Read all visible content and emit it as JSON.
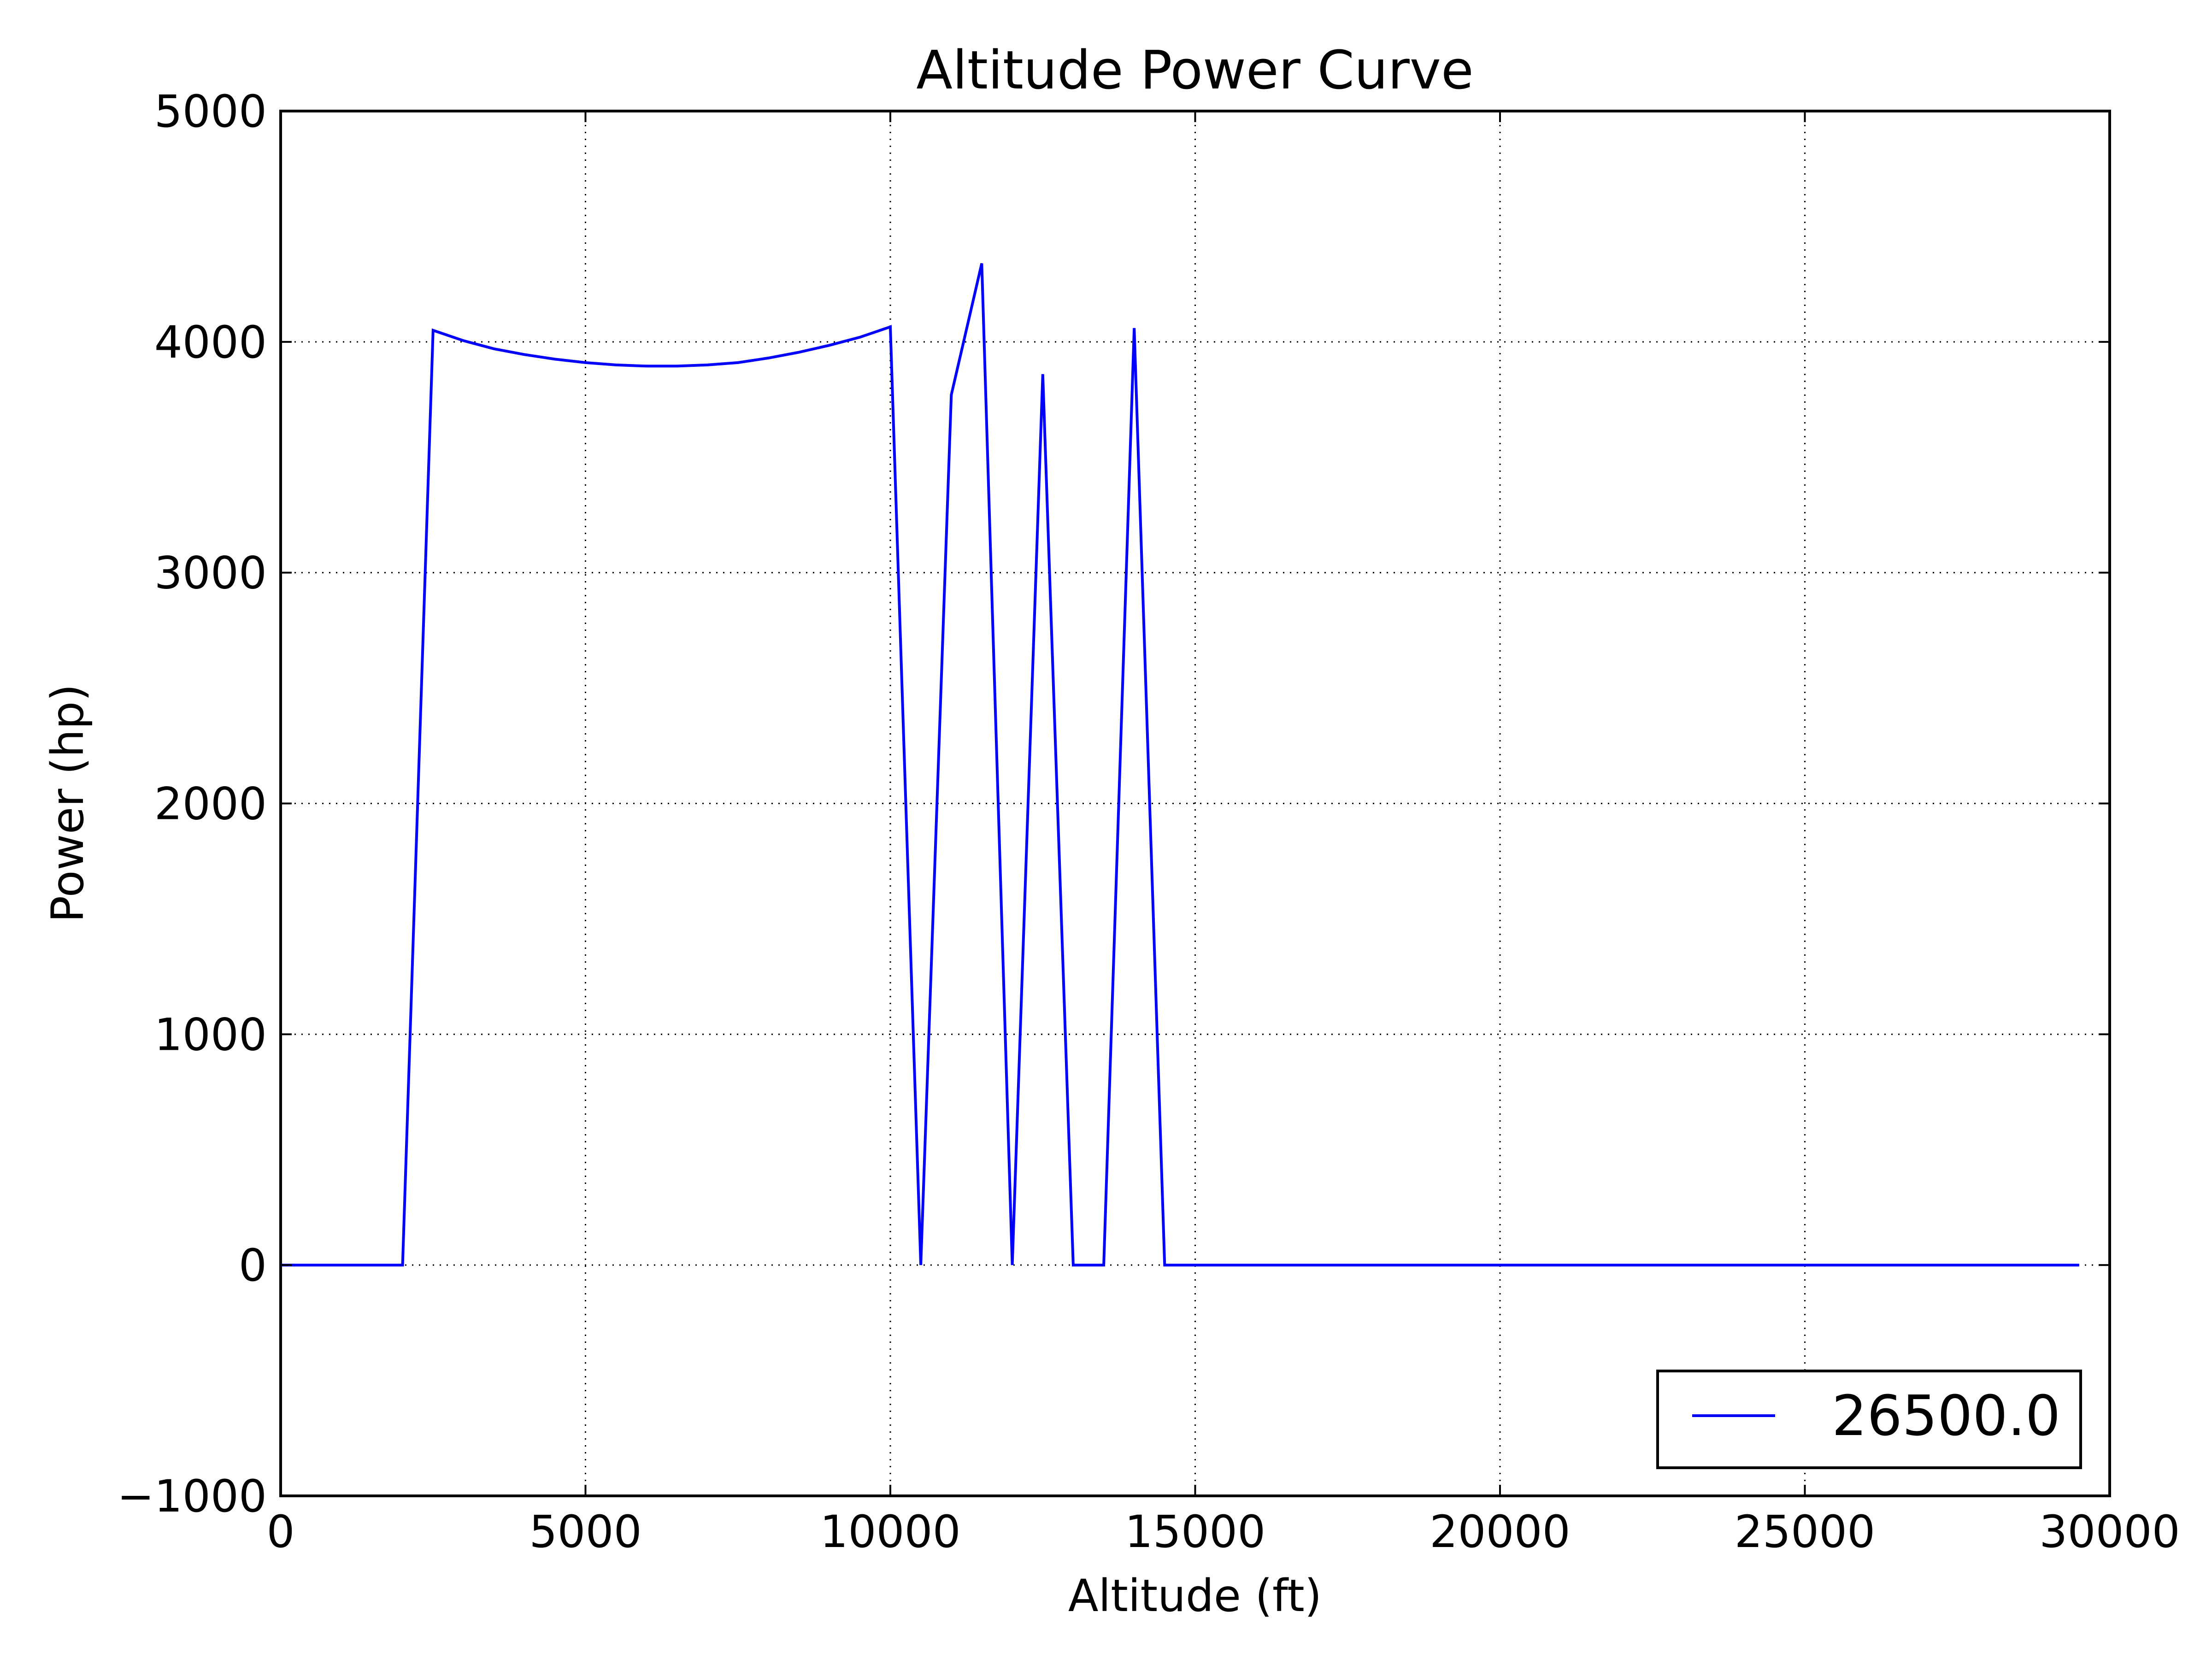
{
  "chart_data": {
    "type": "line",
    "title": "Altitude Power Curve",
    "xlabel": "Altitude (ft)",
    "ylabel": "Power (hp)",
    "xlim": [
      0,
      30000
    ],
    "ylim": [
      -1000,
      5000
    ],
    "xticks": [
      0,
      5000,
      10000,
      15000,
      20000,
      25000,
      30000
    ],
    "yticks": [
      -1000,
      0,
      1000,
      2000,
      3000,
      4000,
      5000
    ],
    "xtick_labels": [
      "0",
      "5000",
      "10000",
      "15000",
      "20000",
      "25000",
      "30000"
    ],
    "ytick_labels": [
      "−1000",
      "0",
      "1000",
      "2000",
      "3000",
      "4000",
      "5000"
    ],
    "grid": true,
    "legend_position": "lower-right",
    "series": [
      {
        "name": "26500.0",
        "color": "#0000ff",
        "x": [
          0,
          500,
          1000,
          1500,
          2000,
          2500,
          3000,
          3500,
          4000,
          4500,
          5000,
          5500,
          6000,
          6500,
          7000,
          7500,
          8000,
          8500,
          9000,
          9500,
          10000,
          10500,
          11000,
          11500,
          12000,
          12500,
          13000,
          13500,
          14000,
          14500,
          15000,
          15500,
          16000,
          16500,
          17000,
          17500,
          18000,
          18500,
          19000,
          19500,
          20000,
          20500,
          21000,
          21500,
          22000,
          22500,
          23000,
          23500,
          24000,
          24500,
          25000,
          25500,
          26000,
          26500,
          27000,
          27500,
          28000,
          28500,
          29000,
          29500
        ],
        "y": [
          0,
          0,
          0,
          0,
          0,
          4050,
          4005,
          3970,
          3945,
          3925,
          3910,
          3900,
          3895,
          3895,
          3900,
          3910,
          3930,
          3955,
          3985,
          4020,
          4065,
          0,
          3770,
          4340,
          0,
          3860,
          0,
          0,
          4060,
          0,
          0,
          0,
          0,
          0,
          0,
          0,
          0,
          0,
          0,
          0,
          0,
          0,
          0,
          0,
          0,
          0,
          0,
          0,
          0,
          0,
          0,
          0,
          0,
          0,
          0,
          0,
          0,
          0,
          0,
          0
        ]
      }
    ]
  }
}
